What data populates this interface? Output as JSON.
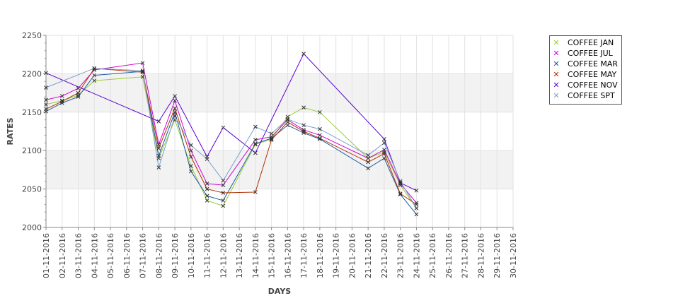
{
  "chart_data": {
    "type": "line",
    "xlabel": "DAYS",
    "ylabel": "RATES",
    "ylim": [
      2000,
      2250
    ],
    "yticks": [
      2000,
      2050,
      2100,
      2150,
      2200,
      2250
    ],
    "grid": "horizontal alternating bands",
    "legend_position": "right",
    "x_tick_labels": [
      "01-11-2016",
      "02-11-2016",
      "03-11-2016",
      "04-11-2016",
      "05-11-2016",
      "06-11-2016",
      "07-11-2016",
      "08-11-2016",
      "09-11-2016",
      "10-11-2016",
      "11-11-2016",
      "12-11-2016",
      "13-11-2016",
      "14-11-2016",
      "15-11-2016",
      "16-11-2016",
      "17-11-2016",
      "18-11-2016",
      "19-11-2016",
      "20-11-2016",
      "21-11-2016",
      "22-11-2016",
      "23-11-2016",
      "24-11-2016",
      "25-11-2016",
      "26-11-2016",
      "27-11-2016",
      "28-11-2016",
      "29-11-2016",
      "30-11-2016"
    ],
    "series": [
      {
        "name": "COFFEE JAN",
        "color": "#9acd32",
        "points": [
          [
            "01-11-2016",
            2160
          ],
          [
            "02-11-2016",
            2165
          ],
          [
            "03-11-2016",
            2172
          ],
          [
            "04-11-2016",
            2191
          ],
          [
            "07-11-2016",
            2196
          ],
          [
            "08-11-2016",
            2090
          ],
          [
            "09-11-2016",
            2140
          ],
          [
            "10-11-2016",
            2080
          ],
          [
            "11-11-2016",
            2035
          ],
          [
            "12-11-2016",
            2028
          ],
          [
            "14-11-2016",
            2108
          ],
          [
            "15-11-2016",
            2115
          ],
          [
            "16-11-2016",
            2144
          ],
          [
            "17-11-2016",
            2156
          ],
          [
            "18-11-2016",
            2150
          ],
          [
            "21-11-2016",
            2090
          ],
          [
            "22-11-2016",
            2098
          ],
          [
            "23-11-2016",
            2055
          ],
          [
            "24-11-2016",
            2025
          ]
        ]
      },
      {
        "name": "COFFEE JUL",
        "color": "#d400d4",
        "points": [
          [
            "01-11-2016",
            2166
          ],
          [
            "02-11-2016",
            2171
          ],
          [
            "03-11-2016",
            2181
          ],
          [
            "04-11-2016",
            2205
          ],
          [
            "07-11-2016",
            2214
          ],
          [
            "08-11-2016",
            2108
          ],
          [
            "09-11-2016",
            2165
          ],
          [
            "10-11-2016",
            2100
          ],
          [
            "11-11-2016",
            2057
          ],
          [
            "12-11-2016",
            2055
          ],
          [
            "14-11-2016",
            2114
          ],
          [
            "15-11-2016",
            2118
          ],
          [
            "16-11-2016",
            2140
          ],
          [
            "17-11-2016",
            2127
          ],
          [
            "18-11-2016",
            2120
          ],
          [
            "21-11-2016",
            2090
          ],
          [
            "22-11-2016",
            2101
          ],
          [
            "23-11-2016",
            2057
          ],
          [
            "24-11-2016",
            2032
          ]
        ]
      },
      {
        "name": "COFFEE MAR",
        "color": "#1e5aa0",
        "points": [
          [
            "01-11-2016",
            2151
          ],
          [
            "02-11-2016",
            2162
          ],
          [
            "03-11-2016",
            2170
          ],
          [
            "04-11-2016",
            2198
          ],
          [
            "07-11-2016",
            2203
          ],
          [
            "08-11-2016",
            2093
          ],
          [
            "09-11-2016",
            2150
          ],
          [
            "10-11-2016",
            2073
          ],
          [
            "11-11-2016",
            2041
          ],
          [
            "12-11-2016",
            2035
          ],
          [
            "14-11-2016",
            2109
          ],
          [
            "15-11-2016",
            2116
          ],
          [
            "16-11-2016",
            2133
          ],
          [
            "17-11-2016",
            2123
          ],
          [
            "18-11-2016",
            2115
          ],
          [
            "21-11-2016",
            2077
          ],
          [
            "22-11-2016",
            2090
          ],
          [
            "23-11-2016",
            2043
          ],
          [
            "24-11-2016",
            2017
          ]
        ]
      },
      {
        "name": "COFFEE MAY",
        "color": "#b03000",
        "points": [
          [
            "01-11-2016",
            2154
          ],
          [
            "02-11-2016",
            2164
          ],
          [
            "03-11-2016",
            2175
          ],
          [
            "04-11-2016",
            2207
          ],
          [
            "07-11-2016",
            2202
          ],
          [
            "08-11-2016",
            2103
          ],
          [
            "09-11-2016",
            2155
          ],
          [
            "10-11-2016",
            2092
          ],
          [
            "11-11-2016",
            2050
          ],
          [
            "12-11-2016",
            2045
          ],
          [
            "14-11-2016",
            2046
          ],
          [
            "15-11-2016",
            2114
          ],
          [
            "16-11-2016",
            2137
          ],
          [
            "17-11-2016",
            2125
          ],
          [
            "18-11-2016",
            2116
          ],
          [
            "21-11-2016",
            2085
          ],
          [
            "22-11-2016",
            2096
          ],
          [
            "23-11-2016",
            2044
          ],
          [
            "24-11-2016",
            2030
          ]
        ]
      },
      {
        "name": "COFFEE NOV",
        "color": "#5a00d0",
        "points": [
          [
            "01-11-2016",
            2201
          ],
          [
            "08-11-2016",
            2138
          ],
          [
            "09-11-2016",
            2171
          ],
          [
            "11-11-2016",
            2092
          ],
          [
            "12-11-2016",
            2130
          ],
          [
            "14-11-2016",
            2097
          ],
          [
            "17-11-2016",
            2226
          ],
          [
            "22-11-2016",
            2115
          ],
          [
            "23-11-2016",
            2058
          ],
          [
            "24-11-2016",
            2048
          ]
        ]
      },
      {
        "name": "COFFEE SPT",
        "color": "#7aa0c8",
        "points": [
          [
            "01-11-2016",
            2182
          ],
          [
            "04-11-2016",
            2207
          ],
          [
            "07-11-2016",
            2204
          ],
          [
            "08-11-2016",
            2078
          ],
          [
            "09-11-2016",
            2145
          ],
          [
            "10-11-2016",
            2107
          ],
          [
            "11-11-2016",
            2089
          ],
          [
            "12-11-2016",
            2061
          ],
          [
            "14-11-2016",
            2131
          ],
          [
            "15-11-2016",
            2122
          ],
          [
            "16-11-2016",
            2141
          ],
          [
            "17-11-2016",
            2133
          ],
          [
            "18-11-2016",
            2128
          ],
          [
            "21-11-2016",
            2094
          ],
          [
            "22-11-2016",
            2110
          ],
          [
            "23-11-2016",
            2060
          ],
          [
            "24-11-2016",
            2025
          ]
        ]
      }
    ]
  }
}
